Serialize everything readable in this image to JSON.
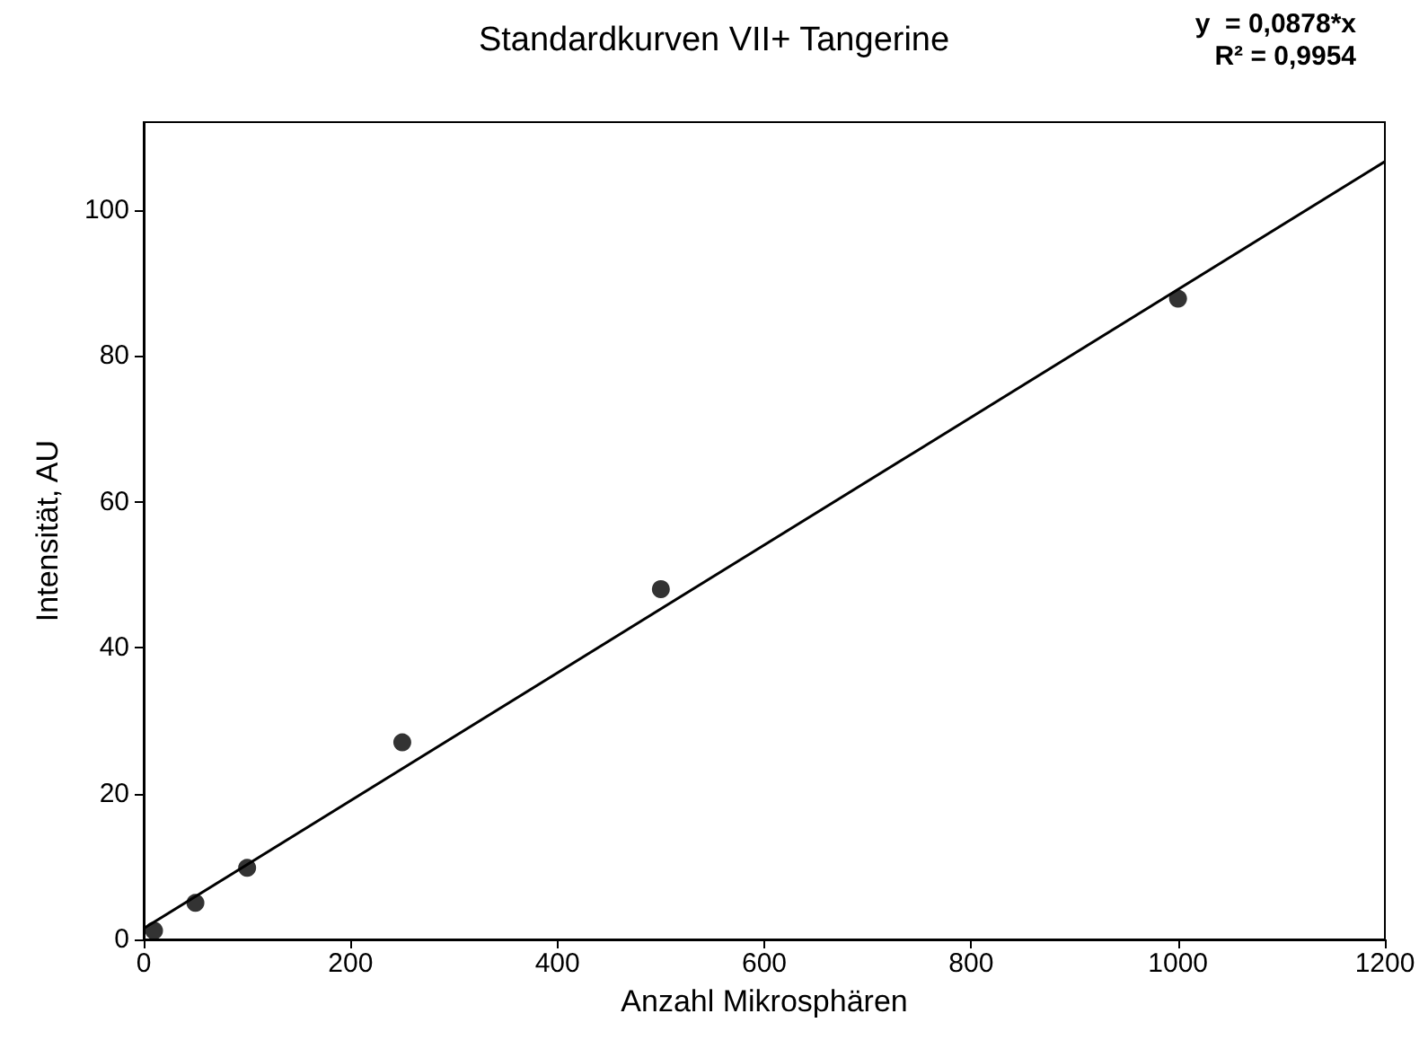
{
  "chart_data": {
    "type": "scatter",
    "title": "Standardkurven VII+ Tangerine",
    "xlabel": "Anzahl Mikrosphären",
    "ylabel": "Intensität, AU",
    "annotations": [
      "y  = 0,0878*x",
      "R² = 0,9954"
    ],
    "x": [
      10,
      50,
      100,
      250,
      500,
      1000
    ],
    "series": [
      {
        "color": "#000000",
        "marker": "circle",
        "values": [
          1.2,
          5,
          9.8,
          27,
          48,
          87.8
        ]
      },
      {
        "type": "line",
        "color": "#000000",
        "marker": "none",
        "x": [
          0,
          1200
        ],
        "values": [
          1.5,
          106.6
        ]
      }
    ],
    "xlim": [
      0,
      1200
    ],
    "xticks": [
      0,
      200,
      400,
      600,
      800,
      1000,
      1200
    ],
    "ylim": [
      0,
      112
    ],
    "yticks": [
      0,
      20,
      40,
      60,
      80,
      100
    ],
    "grid": false
  }
}
